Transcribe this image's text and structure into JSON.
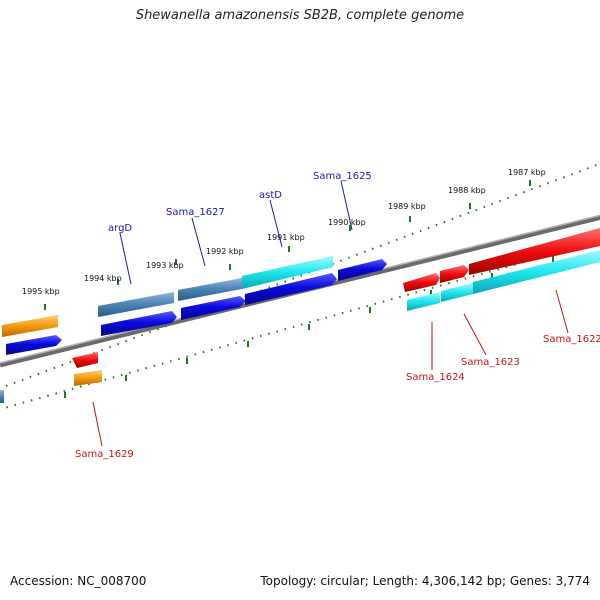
{
  "title": "Shewanella amazonensis SB2B, complete genome",
  "footer": {
    "accession": "Accession: NC_008700",
    "topology": "Topology: circular; Length: 4,306,142 bp; Genes: 3,774"
  },
  "kbp_labels": [
    "1995 kbp",
    "1994 kbp",
    "1993 kbp",
    "1992 kbp",
    "1991 kbp",
    "1990 kbp",
    "1989 kbp",
    "1988 kbp",
    "1987 kbp"
  ],
  "gene_labels": {
    "argD": "argD",
    "sama_1627": "Sama_1627",
    "astD": "astD",
    "sama_1625": "Sama_1625",
    "sama_1629": "Sama_1629",
    "sama_1624": "Sama_1624",
    "sama_1623": "Sama_1623",
    "sama_1622": "Sama_1622"
  },
  "colors": {
    "forward_label": "#1a1aaa",
    "reverse_label": "#cc1111",
    "blue": "#0a0adc",
    "steelblue": "#4a82b4",
    "cyan": "#1ee6ee",
    "red": "#ee0c0c",
    "orange": "#f59a10",
    "backbone": "#888888",
    "tick": "#1a7a1a"
  }
}
